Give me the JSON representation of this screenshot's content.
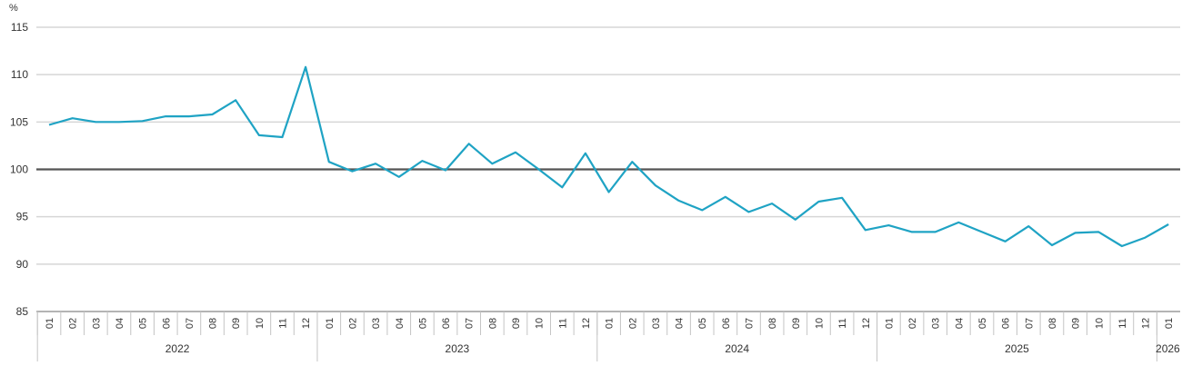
{
  "chart_data": {
    "type": "line",
    "ylabel": "%",
    "ylim": [
      85,
      115
    ],
    "yticks": [
      85,
      90,
      95,
      100,
      105,
      110,
      115
    ],
    "grid": true,
    "reference_line": 100,
    "x": [
      "01",
      "02",
      "03",
      "04",
      "05",
      "06",
      "07",
      "08",
      "09",
      "10",
      "11",
      "12",
      "01",
      "02",
      "03",
      "04",
      "05",
      "06",
      "07",
      "08",
      "09",
      "10",
      "11",
      "12",
      "01",
      "02",
      "03",
      "04",
      "05",
      "06",
      "07",
      "08",
      "09",
      "10",
      "11",
      "12",
      "01",
      "02",
      "03",
      "04",
      "05",
      "06",
      "07",
      "08",
      "09",
      "10",
      "11",
      "12",
      "01"
    ],
    "years": [
      {
        "label": "2022",
        "months": 12
      },
      {
        "label": "2023",
        "months": 12
      },
      {
        "label": "2024",
        "months": 12
      },
      {
        "label": "2025",
        "months": 12
      },
      {
        "label": "2026",
        "months": 1
      }
    ],
    "series": [
      {
        "color": "#1fa3c4",
        "values": [
          104.7,
          105.4,
          105.0,
          105.0,
          105.1,
          105.6,
          105.6,
          105.8,
          107.3,
          103.6,
          103.4,
          110.8,
          100.8,
          99.8,
          100.6,
          99.2,
          100.9,
          99.9,
          102.7,
          100.6,
          101.8,
          100.0,
          98.1,
          101.7,
          97.6,
          100.8,
          98.3,
          96.7,
          95.7,
          97.1,
          95.5,
          96.4,
          94.7,
          96.6,
          97.0,
          93.6,
          94.1,
          93.4,
          93.4,
          94.4,
          93.4,
          92.4,
          94.0,
          92.0,
          93.3,
          93.4,
          91.9,
          92.8,
          94.2
        ]
      }
    ],
    "colors": {
      "reference": "#555555",
      "grid": "#d6d6d6",
      "axis": "#888888"
    }
  }
}
